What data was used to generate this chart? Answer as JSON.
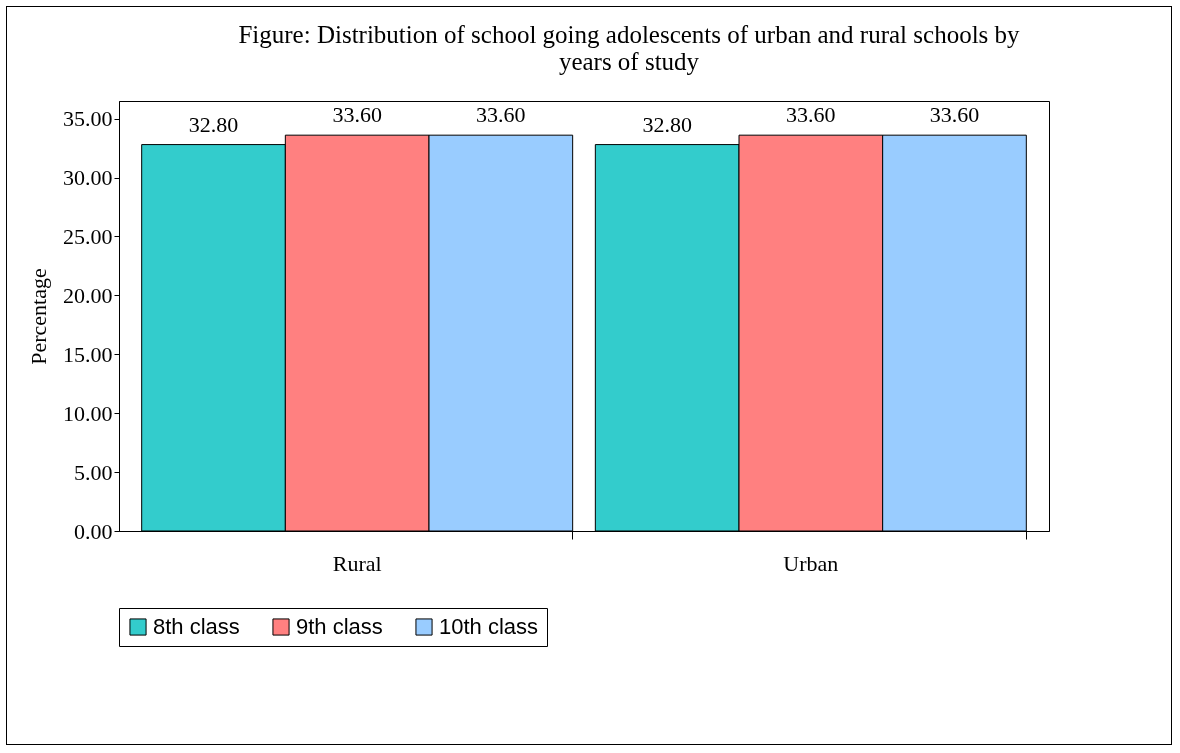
{
  "chart_data": {
    "type": "bar",
    "title": "Figure: Distribution of school going adolescents of urban and rural schools by years of study",
    "ylabel": "Percentage",
    "categories": [
      "Rural",
      "Urban"
    ],
    "series": [
      {
        "name": "8th class",
        "color": "#33cccc",
        "values": [
          32.8,
          32.8
        ],
        "value_labels": [
          "32.80",
          "32.80"
        ]
      },
      {
        "name": "9th class",
        "color": "#ff8080",
        "values": [
          33.6,
          33.6
        ],
        "value_labels": [
          "33.60",
          "33.60"
        ]
      },
      {
        "name": "10th class",
        "color": "#99ccff",
        "values": [
          33.6,
          33.6
        ],
        "value_labels": [
          "33.60",
          "33.60"
        ]
      }
    ],
    "ylim": [
      0,
      36.5
    ],
    "yticks": [
      {
        "value": 0,
        "label": "0.00"
      },
      {
        "value": 5,
        "label": "5.00"
      },
      {
        "value": 10,
        "label": "10.00"
      },
      {
        "value": 15,
        "label": "15.00"
      },
      {
        "value": 20,
        "label": "20.00"
      },
      {
        "value": 25,
        "label": "25.00"
      },
      {
        "value": 30,
        "label": "30.00"
      },
      {
        "value": 35,
        "label": "35.00"
      }
    ],
    "grid": false,
    "legend": "bottom"
  }
}
